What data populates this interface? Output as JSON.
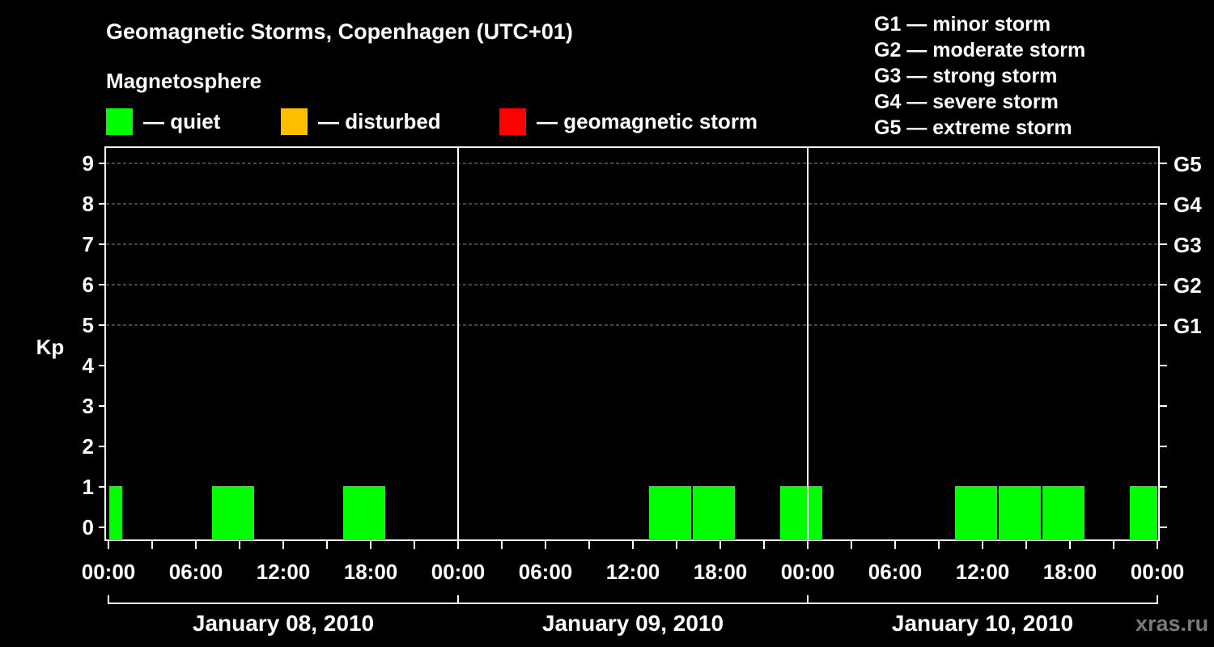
{
  "title": "Geomagnetic Storms, Copenhagen (UTC+01)",
  "subtitle": "Magnetosphere",
  "legend": [
    {
      "label": "— quiet",
      "color": "#00ff00"
    },
    {
      "label": "— disturbed",
      "color": "#ffbf00"
    },
    {
      "label": "— geomagnetic storm",
      "color": "#ff0000"
    }
  ],
  "g_legend": [
    "G1 — minor storm",
    "G2 — moderate storm",
    "G3 — strong storm",
    "G4 — severe storm",
    "G5 — extreme storm"
  ],
  "watermark": "xras.ru",
  "chart_data": {
    "type": "bar",
    "title": "Geomagnetic Storms, Copenhagen (UTC+01)",
    "ylabel": "Kp",
    "ylim": [
      0,
      9
    ],
    "y_ticks": [
      "0",
      "1",
      "2",
      "3",
      "4",
      "5",
      "6",
      "7",
      "8",
      "9"
    ],
    "right_ticks": [
      {
        "kp": 5,
        "label": "G1"
      },
      {
        "kp": 6,
        "label": "G2"
      },
      {
        "kp": 7,
        "label": "G3"
      },
      {
        "kp": 8,
        "label": "G4"
      },
      {
        "kp": 9,
        "label": "G5"
      }
    ],
    "x_tick_labels": [
      "00:00",
      "06:00",
      "12:00",
      "18:00",
      "00:00",
      "06:00",
      "12:00",
      "18:00",
      "00:00",
      "06:00",
      "12:00",
      "18:00",
      "00:00"
    ],
    "days": [
      "January 08, 2010",
      "January 09, 2010",
      "January 10, 2010"
    ],
    "grid": "dashed horizontal at Kp 5–9",
    "series": [
      {
        "color": "#00ff00",
        "bars": [
          {
            "day": 0,
            "start": "00:00",
            "end": "01:00",
            "kp": 1
          },
          {
            "day": 0,
            "start": "07:00",
            "end": "10:00",
            "kp": 1
          },
          {
            "day": 0,
            "start": "16:00",
            "end": "19:00",
            "kp": 1
          },
          {
            "day": 1,
            "start": "13:00",
            "end": "16:00",
            "kp": 1
          },
          {
            "day": 1,
            "start": "16:00",
            "end": "19:00",
            "kp": 1
          },
          {
            "day": 1,
            "start": "22:00",
            "end": "01:00",
            "kp": 1
          },
          {
            "day": 2,
            "start": "10:00",
            "end": "13:00",
            "kp": 1
          },
          {
            "day": 2,
            "start": "13:00",
            "end": "16:00",
            "kp": 1
          },
          {
            "day": 2,
            "start": "16:00",
            "end": "19:00",
            "kp": 1
          },
          {
            "day": 2,
            "start": "22:00",
            "end": "24:00",
            "kp": 1
          }
        ]
      }
    ]
  }
}
